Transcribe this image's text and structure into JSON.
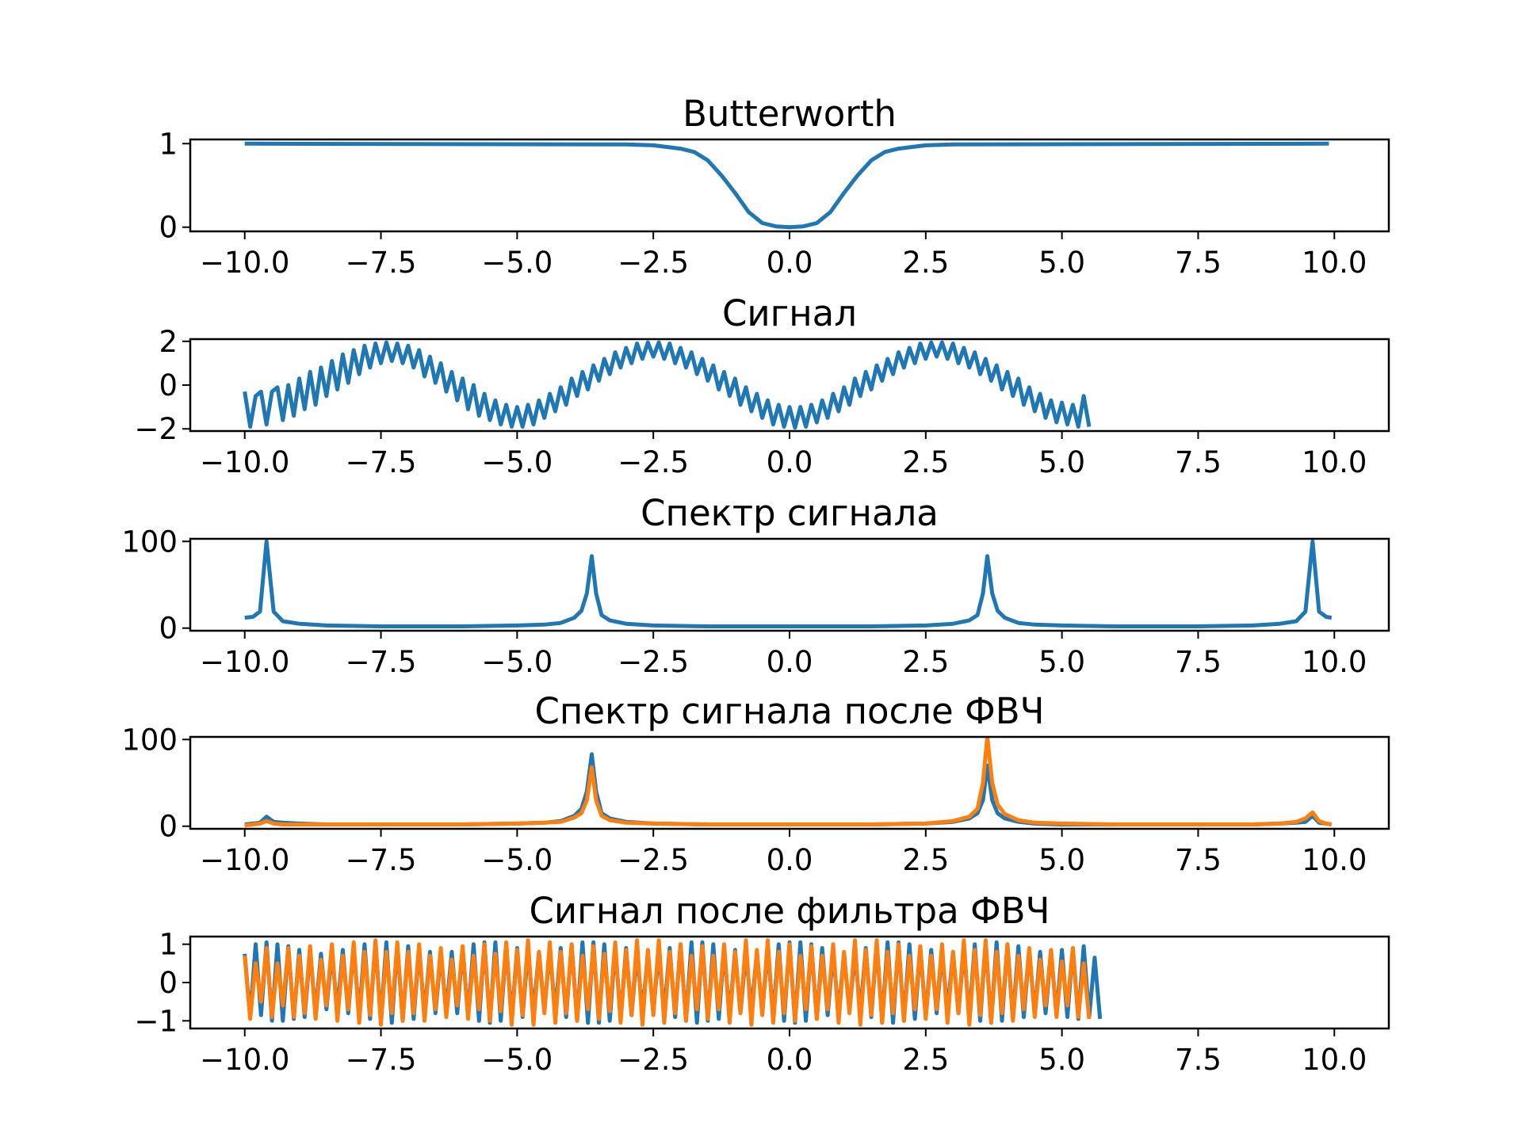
{
  "chart_data": [
    {
      "type": "line",
      "title": "Butterworth",
      "xlim": [
        -11,
        11
      ],
      "ylim": [
        -0.05,
        1.05
      ],
      "xticks": [
        -10,
        -7.5,
        -5,
        -2.5,
        0,
        2.5,
        5,
        7.5,
        10
      ],
      "xtick_labels": [
        "−10.0",
        "−7.5",
        "−5.0",
        "−2.5",
        "0.0",
        "2.5",
        "5.0",
        "7.5",
        "10.0"
      ],
      "yticks": [
        0,
        1
      ],
      "ytick_labels": [
        "0",
        "1"
      ],
      "grid": false,
      "series": [
        {
          "color": "#1f77b4",
          "x": [
            -10,
            -3,
            -2.5,
            -2,
            -1.75,
            -1.5,
            -1.25,
            -1,
            -0.75,
            -0.5,
            -0.25,
            0,
            0.25,
            0.5,
            0.75,
            1,
            1.25,
            1.5,
            1.75,
            2,
            2.5,
            3,
            9.9
          ],
          "y": [
            1.0,
            0.99,
            0.98,
            0.94,
            0.9,
            0.8,
            0.62,
            0.41,
            0.18,
            0.05,
            0.01,
            0.0,
            0.01,
            0.05,
            0.18,
            0.41,
            0.62,
            0.8,
            0.9,
            0.94,
            0.98,
            0.99,
            1.0
          ]
        }
      ]
    },
    {
      "type": "line",
      "title": "Сигнал",
      "xlim": [
        -11,
        11
      ],
      "ylim": [
        -2.1,
        2.1
      ],
      "xticks": [
        -10,
        -7.5,
        -5,
        -2.5,
        0,
        2.5,
        5,
        7.5,
        10
      ],
      "xtick_labels": [
        "−10.0",
        "−7.5",
        "−5.0",
        "−2.5",
        "0.0",
        "2.5",
        "5.0",
        "7.5",
        "10.0"
      ],
      "yticks": [
        -2,
        0,
        2
      ],
      "ytick_labels": [
        "−2",
        "0",
        "2"
      ],
      "grid": false,
      "series": [
        {
          "color": "#1f77b4",
          "x_start": -10,
          "x_step": 0.1,
          "y": [
            -0.3,
            -1.9,
            -0.5,
            -0.3,
            -1.8,
            -0.3,
            -0.1,
            -1.6,
            0.0,
            -1.4,
            0.3,
            -1.1,
            0.6,
            -0.9,
            0.8,
            -0.5,
            1.1,
            -0.2,
            1.4,
            0.1,
            1.6,
            0.5,
            1.8,
            0.8,
            1.9,
            1.0,
            1.95,
            1.1,
            1.9,
            1.0,
            1.8,
            0.8,
            1.6,
            0.4,
            1.3,
            0.1,
            1.0,
            -0.3,
            0.6,
            -0.7,
            0.3,
            -1.1,
            0.0,
            -1.4,
            -0.4,
            -1.6,
            -0.7,
            -1.8,
            -0.9,
            -1.9,
            -1.0,
            -1.9,
            -0.9,
            -1.8,
            -0.7,
            -1.5,
            -0.4,
            -1.2,
            -0.1,
            -0.9,
            0.3,
            -0.5,
            0.6,
            -0.2,
            0.9,
            0.2,
            1.2,
            0.5,
            1.5,
            0.8,
            1.7,
            1.0,
            1.9,
            1.2,
            1.95,
            1.3,
            1.95,
            1.2,
            1.9,
            1.0,
            1.7,
            0.8,
            1.5,
            0.5,
            1.2,
            0.2,
            0.9,
            -0.2,
            0.6,
            -0.5,
            0.3,
            -0.9,
            -0.1,
            -1.2,
            -0.4,
            -1.5,
            -0.7,
            -1.8,
            -0.9,
            -1.9,
            -1.0,
            -1.95,
            -1.0,
            -1.9,
            -0.9,
            -1.7,
            -0.7,
            -1.5,
            -0.4,
            -1.2,
            -0.1,
            -0.9,
            0.3,
            -0.5,
            0.6,
            -0.2,
            0.9,
            0.2,
            1.2,
            0.5,
            1.5,
            0.8,
            1.7,
            1.0,
            1.9,
            1.2,
            1.95,
            1.3,
            1.95,
            1.2,
            1.9,
            1.0,
            1.7,
            0.8,
            1.5,
            0.5,
            1.2,
            0.2,
            0.9,
            -0.2,
            0.6,
            -0.5,
            0.3,
            -0.9,
            -0.1,
            -1.2,
            -0.4,
            -1.5,
            -0.7,
            -1.7,
            -0.8,
            -1.8,
            -0.9,
            -1.9,
            -0.5,
            -1.9
          ]
        }
      ]
    },
    {
      "type": "line",
      "title": "Спектр сигнала",
      "xlim": [
        -11,
        11
      ],
      "ylim": [
        -3,
        103
      ],
      "xticks": [
        -10,
        -7.5,
        -5,
        -2.5,
        0,
        2.5,
        5,
        7.5,
        10
      ],
      "xtick_labels": [
        "−10.0",
        "−7.5",
        "−5.0",
        "−2.5",
        "0.0",
        "2.5",
        "5.0",
        "7.5",
        "10.0"
      ],
      "yticks": [
        0,
        100
      ],
      "ytick_labels": [
        "0",
        "100"
      ],
      "grid": false,
      "series": [
        {
          "color": "#1f77b4",
          "x": [
            -10,
            -9.85,
            -9.72,
            -9.6,
            -9.47,
            -9.3,
            -9.0,
            -8.5,
            -7.5,
            -6,
            -5,
            -4.5,
            -4.2,
            -3.95,
            -3.82,
            -3.72,
            -3.63,
            -3.55,
            -3.45,
            -3.3,
            -3.0,
            -2.5,
            -1.5,
            0,
            1.5,
            2.5,
            3.0,
            3.3,
            3.45,
            3.55,
            3.63,
            3.72,
            3.82,
            3.95,
            4.2,
            4.5,
            5,
            6,
            7.5,
            8.5,
            9.0,
            9.3,
            9.47,
            9.6,
            9.72,
            9.85,
            9.95
          ],
          "y": [
            12,
            13,
            19,
            100,
            19,
            8,
            5,
            3,
            2,
            2,
            3,
            4,
            6,
            12,
            20,
            40,
            83,
            40,
            15,
            9,
            5,
            3,
            2,
            2,
            2,
            3,
            5,
            9,
            15,
            40,
            83,
            40,
            20,
            12,
            6,
            4,
            3,
            2,
            2,
            3,
            5,
            8,
            19,
            100,
            19,
            13,
            12
          ]
        }
      ]
    },
    {
      "type": "line",
      "title": "Спектр сигнала после ФВЧ",
      "xlim": [
        -11,
        11
      ],
      "ylim": [
        -3,
        103
      ],
      "xticks": [
        -10,
        -7.5,
        -5,
        -2.5,
        0,
        2.5,
        5,
        7.5,
        10
      ],
      "xtick_labels": [
        "−10.0",
        "−7.5",
        "−5.0",
        "−2.5",
        "0.0",
        "2.5",
        "5.0",
        "7.5",
        "10.0"
      ],
      "yticks": [
        0,
        100
      ],
      "ytick_labels": [
        "0",
        "100"
      ],
      "grid": false,
      "series": [
        {
          "color": "#1f77b4",
          "x": [
            -10,
            -9.85,
            -9.72,
            -9.6,
            -9.47,
            -9.3,
            -9.0,
            -8.5,
            -7.5,
            -6,
            -5,
            -4.5,
            -4.2,
            -3.95,
            -3.82,
            -3.72,
            -3.63,
            -3.55,
            -3.45,
            -3.3,
            -3.0,
            -2.5,
            -1.5,
            0,
            1.5,
            2.5,
            3.0,
            3.3,
            3.45,
            3.55,
            3.63,
            3.72,
            3.82,
            3.95,
            4.2,
            4.5,
            5,
            6,
            7.5,
            8.5,
            9.0,
            9.3,
            9.47,
            9.6,
            9.72,
            9.85,
            9.95
          ],
          "y": [
            2,
            3,
            4,
            11,
            5,
            4,
            3,
            2,
            2,
            2,
            3,
            4,
            6,
            12,
            20,
            40,
            83,
            40,
            15,
            9,
            5,
            3,
            2,
            2,
            2,
            3,
            5,
            9,
            15,
            30,
            70,
            30,
            15,
            9,
            5,
            3,
            2,
            2,
            2,
            2,
            3,
            4,
            5,
            12,
            4,
            3,
            2
          ]
        },
        {
          "color": "#ff7f0e",
          "x": [
            -10,
            -9.85,
            -9.72,
            -9.6,
            -9.47,
            -9.3,
            -9.0,
            -8.5,
            -7.5,
            -6,
            -5,
            -4.5,
            -4.2,
            -3.95,
            -3.82,
            -3.72,
            -3.63,
            -3.55,
            -3.45,
            -3.3,
            -3.0,
            -2.5,
            -1.5,
            0,
            1.5,
            2.5,
            3.0,
            3.3,
            3.45,
            3.55,
            3.63,
            3.72,
            3.82,
            3.95,
            4.2,
            4.5,
            5,
            6,
            7.5,
            8.5,
            9.0,
            9.3,
            9.47,
            9.6,
            9.72,
            9.85,
            9.95
          ],
          "y": [
            1,
            2,
            3,
            6,
            3,
            2,
            2,
            2,
            2,
            2,
            3,
            4,
            5,
            10,
            15,
            30,
            68,
            30,
            12,
            7,
            4,
            3,
            2,
            2,
            2,
            3,
            6,
            11,
            20,
            50,
            103,
            50,
            25,
            14,
            7,
            4,
            3,
            2,
            2,
            2,
            3,
            5,
            9,
            16,
            6,
            3,
            2
          ]
        }
      ]
    },
    {
      "type": "line",
      "title": "Сигнал после фильтра ФВЧ",
      "xlim": [
        -11,
        11
      ],
      "ylim": [
        -1.2,
        1.2
      ],
      "xticks": [
        -10,
        -7.5,
        -5,
        -2.5,
        0,
        2.5,
        5,
        7.5,
        10
      ],
      "xtick_labels": [
        "−10.0",
        "−7.5",
        "−5.0",
        "−2.5",
        "0.0",
        "2.5",
        "5.0",
        "7.5",
        "10.0"
      ],
      "yticks": [
        -1,
        0,
        1
      ],
      "ytick_labels": [
        "−1",
        "0",
        "1"
      ],
      "grid": false,
      "series": [
        {
          "color": "#1f77b4",
          "x_start": -10,
          "x_step": 0.1,
          "y": [
            0.75,
            -0.9,
            1.0,
            -0.85,
            1.05,
            -1.0,
            1.0,
            -1.0,
            0.95,
            -0.95,
            0.85,
            -0.9,
            0.8,
            -0.8,
            0.75,
            -0.7,
            0.8,
            -0.75,
            0.85,
            -0.8,
            0.95,
            -0.9,
            1.0,
            -0.95,
            1.05,
            -1.0,
            1.05,
            -1.05,
            1.0,
            -1.0,
            0.95,
            -0.95,
            0.9,
            -0.85,
            0.8,
            -0.8,
            0.75,
            -0.75,
            0.8,
            -0.8,
            0.9,
            -0.9,
            1.0,
            -1.0,
            1.05,
            -1.05,
            1.05,
            -1.0,
            1.0,
            -0.95,
            0.9,
            -0.9,
            0.85,
            -0.8,
            0.8,
            -0.75,
            0.85,
            -0.8,
            0.9,
            -0.9,
            1.0,
            -1.0,
            1.05,
            -1.05,
            1.05,
            -1.05,
            1.0,
            -1.0,
            0.95,
            -0.95,
            0.9,
            -0.85,
            0.8,
            -0.8,
            0.75,
            -0.75,
            0.8,
            -0.8,
            0.9,
            -0.9,
            1.0,
            -1.0,
            1.05,
            -1.05,
            1.05,
            -1.0,
            1.0,
            -0.95,
            0.9,
            -0.9,
            0.85,
            -0.8,
            0.8,
            -0.75,
            0.8,
            -0.8,
            0.9,
            -0.9,
            1.0,
            -1.0,
            1.05,
            -1.05,
            1.05,
            -1.0,
            1.0,
            -0.95,
            0.9,
            -0.85,
            0.8,
            -0.8,
            0.75,
            -0.75,
            0.8,
            -0.8,
            0.9,
            -0.9,
            1.0,
            -1.0,
            1.05,
            -1.05,
            1.05,
            -1.0,
            1.0,
            -0.95,
            0.9,
            -0.9,
            0.85,
            -0.8,
            0.8,
            -0.75,
            0.8,
            -0.8,
            0.9,
            -0.9,
            1.0,
            -1.0,
            1.05,
            -1.05,
            1.05,
            -1.0,
            1.0,
            -0.95,
            0.95,
            -0.9,
            0.85,
            -0.85,
            0.8,
            -0.8,
            0.8,
            -0.85,
            0.85,
            -0.9,
            0.9,
            -0.95,
            0.95,
            -0.9,
            0.65,
            -0.95
          ]
        },
        {
          "color": "#ff7f0e",
          "x_start": -10,
          "x_step": 0.1,
          "y": [
            0.7,
            -0.95,
            0.5,
            -0.5,
            0.9,
            -0.9,
            0.5,
            -0.6,
            0.9,
            -0.9,
            0.7,
            -0.8,
            0.95,
            -0.95,
            0.6,
            -0.6,
            1.0,
            -1.0,
            0.7,
            -0.7,
            1.05,
            -1.05,
            0.8,
            -0.85,
            1.1,
            -1.1,
            0.8,
            -0.8,
            1.05,
            -1.0,
            0.8,
            -0.8,
            1.0,
            -1.0,
            0.7,
            -0.7,
            0.9,
            -0.9,
            0.6,
            -0.6,
            0.95,
            -0.95,
            0.7,
            -0.7,
            1.0,
            -1.0,
            0.75,
            -0.75,
            1.05,
            -1.1,
            0.85,
            -0.85,
            1.1,
            -1.1,
            0.8,
            -0.8,
            1.05,
            -1.05,
            0.8,
            -0.8,
            1.0,
            -1.0,
            0.7,
            -0.7,
            0.95,
            -0.95,
            0.75,
            -0.75,
            1.05,
            -1.05,
            0.85,
            -0.85,
            1.1,
            -1.1,
            0.85,
            -0.85,
            1.1,
            -1.05,
            0.8,
            -0.8,
            1.0,
            -1.0,
            0.7,
            -0.7,
            0.95,
            -0.95,
            0.7,
            -0.7,
            1.0,
            -1.05,
            0.8,
            -0.8,
            1.1,
            -1.1,
            0.85,
            -0.85,
            1.1,
            -1.05,
            0.8,
            -0.8,
            1.0,
            -1.0,
            0.7,
            -0.7,
            0.95,
            -0.95,
            0.7,
            -0.7,
            1.0,
            -1.05,
            0.8,
            -0.8,
            1.1,
            -1.1,
            0.85,
            -0.85,
            1.1,
            -1.05,
            0.8,
            -0.8,
            1.0,
            -1.0,
            0.7,
            -0.7,
            0.95,
            -0.95,
            0.7,
            -0.7,
            1.0,
            -1.05,
            0.8,
            -0.8,
            1.1,
            -1.1,
            0.85,
            -0.85,
            1.1,
            -1.05,
            0.8,
            -0.8,
            1.0,
            -1.0,
            0.7,
            -0.7,
            0.9,
            -0.9,
            0.6,
            -0.6,
            0.85,
            -0.9,
            0.55,
            -0.6,
            0.9,
            -0.9,
            0.5,
            -0.95
          ]
        }
      ]
    }
  ]
}
